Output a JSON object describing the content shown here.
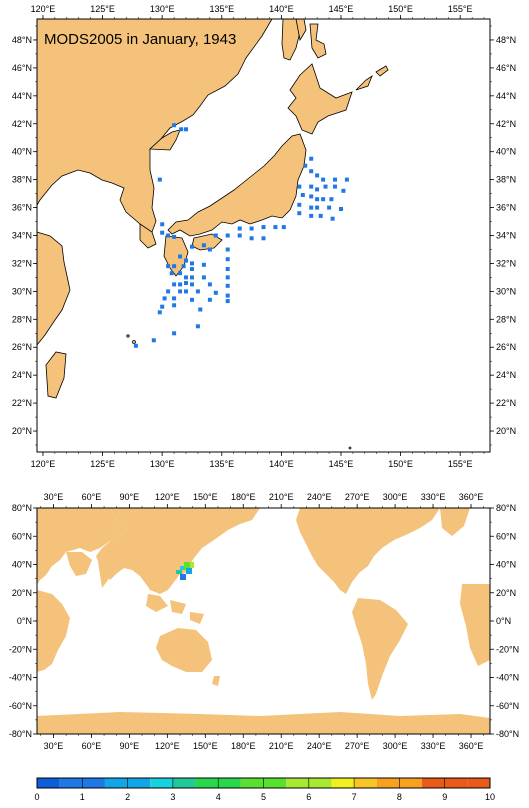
{
  "map_top": {
    "title": "MODS2005 in January, 1943",
    "lon_labels": [
      "120°E",
      "125°E",
      "130°E",
      "135°E",
      "140°E",
      "145°E",
      "150°E",
      "155°E"
    ],
    "lat_labels": [
      "48°N",
      "46°N",
      "44°N",
      "42°N",
      "40°N",
      "38°N",
      "36°N",
      "34°N",
      "32°N",
      "30°N",
      "28°N",
      "26°N",
      "24°N",
      "22°N",
      "20°N"
    ],
    "lon_range": [
      119.5,
      157.5
    ],
    "lat_range": [
      18.5,
      49.5
    ],
    "land_color": "#f4c27a",
    "obs_color": "#1e78e6",
    "observations": [
      [
        131.0,
        41.9
      ],
      [
        131.6,
        41.6
      ],
      [
        132.0,
        41.6
      ],
      [
        129.8,
        38.0
      ],
      [
        142.5,
        39.5
      ],
      [
        142.0,
        39.0
      ],
      [
        142.5,
        38.6
      ],
      [
        143.0,
        38.3
      ],
      [
        143.5,
        38.0
      ],
      [
        144.5,
        38.0
      ],
      [
        145.5,
        38.0
      ],
      [
        141.5,
        37.5
      ],
      [
        142.5,
        37.5
      ],
      [
        143.0,
        37.3
      ],
      [
        143.7,
        37.5
      ],
      [
        144.5,
        37.5
      ],
      [
        145.2,
        37.2
      ],
      [
        141.8,
        36.9
      ],
      [
        142.5,
        36.8
      ],
      [
        143.0,
        36.6
      ],
      [
        143.5,
        36.6
      ],
      [
        144.2,
        36.6
      ],
      [
        141.5,
        36.2
      ],
      [
        142.5,
        36.0
      ],
      [
        143.0,
        36.0
      ],
      [
        144.0,
        36.0
      ],
      [
        145.0,
        35.9
      ],
      [
        141.5,
        35.6
      ],
      [
        142.5,
        35.4
      ],
      [
        143.3,
        35.4
      ],
      [
        144.3,
        35.2
      ],
      [
        130.0,
        34.8
      ],
      [
        130.0,
        34.2
      ],
      [
        130.5,
        34.0
      ],
      [
        131.0,
        33.9
      ],
      [
        136.5,
        34.5
      ],
      [
        137.5,
        34.5
      ],
      [
        138.5,
        34.6
      ],
      [
        139.5,
        34.6
      ],
      [
        140.2,
        34.6
      ],
      [
        134.5,
        34.0
      ],
      [
        135.5,
        34.0
      ],
      [
        136.5,
        34.0
      ],
      [
        137.5,
        33.8
      ],
      [
        138.5,
        33.8
      ],
      [
        132.5,
        33.2
      ],
      [
        133.5,
        33.3
      ],
      [
        134.0,
        33.0
      ],
      [
        135.5,
        33.0
      ],
      [
        131.5,
        32.5
      ],
      [
        132.0,
        32.2
      ],
      [
        132.5,
        32.0
      ],
      [
        135.5,
        32.3
      ],
      [
        130.5,
        31.8
      ],
      [
        131.0,
        31.8
      ],
      [
        131.8,
        31.8
      ],
      [
        132.5,
        31.6
      ],
      [
        133.5,
        31.9
      ],
      [
        135.5,
        31.6
      ],
      [
        130.8,
        31.3
      ],
      [
        131.5,
        31.3
      ],
      [
        132.0,
        31.0
      ],
      [
        132.5,
        31.0
      ],
      [
        133.5,
        31.0
      ],
      [
        135.5,
        31.0
      ],
      [
        131.0,
        30.5
      ],
      [
        131.5,
        30.5
      ],
      [
        132.0,
        30.6
      ],
      [
        132.5,
        30.5
      ],
      [
        134.0,
        30.5
      ],
      [
        135.5,
        30.4
      ],
      [
        130.5,
        30.0
      ],
      [
        131.5,
        30.0
      ],
      [
        132.0,
        30.0
      ],
      [
        133.0,
        30.0
      ],
      [
        134.5,
        29.9
      ],
      [
        135.5,
        29.7
      ],
      [
        130.2,
        29.5
      ],
      [
        131.0,
        29.5
      ],
      [
        132.5,
        29.4
      ],
      [
        134.0,
        29.4
      ],
      [
        135.5,
        29.3
      ],
      [
        130.0,
        28.9
      ],
      [
        131.0,
        29.0
      ],
      [
        133.2,
        28.7
      ],
      [
        129.8,
        28.5
      ],
      [
        133.0,
        27.5
      ],
      [
        131.0,
        27.0
      ],
      [
        129.3,
        26.5
      ],
      [
        127.8,
        26.1
      ]
    ]
  },
  "map_bottom": {
    "lon_labels": [
      "30°E",
      "60°E",
      "90°E",
      "120°E",
      "150°E",
      "180°E",
      "210°E",
      "240°E",
      "270°E",
      "300°E",
      "330°E",
      "360°E"
    ],
    "lat_labels": [
      "80°N",
      "60°N",
      "40°N",
      "20°N",
      "0°N",
      "-20°N",
      "-40°N",
      "-60°N",
      "-80°N"
    ],
    "lon_range": [
      17,
      375
    ],
    "lat_range": [
      -80,
      80
    ]
  },
  "colorbar": {
    "labels": [
      "0",
      "1",
      "2",
      "3",
      "4",
      "5",
      "6",
      "7",
      "8",
      "9",
      "10"
    ],
    "colors": [
      "#0d5ed8",
      "#1e78e6",
      "#12a6e8",
      "#16d2e0",
      "#22c89a",
      "#26d84a",
      "#5ae030",
      "#a8e830",
      "#f0f020",
      "#f8c428",
      "#f8a020",
      "#e85a18"
    ]
  }
}
